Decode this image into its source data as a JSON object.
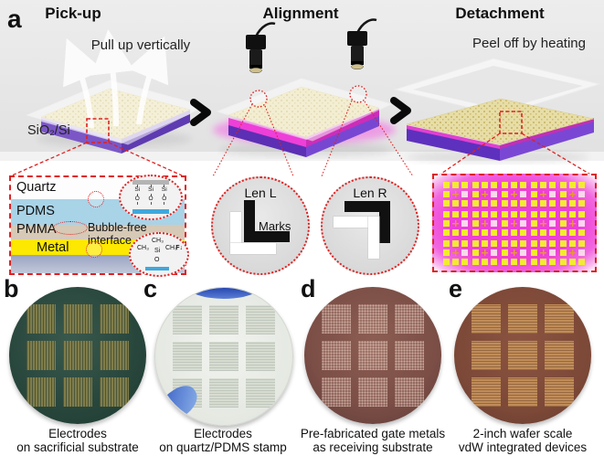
{
  "colors": {
    "accent_red": "#e02020",
    "magenta_layer": "#ee3fd8",
    "purple_substrate": "#6a3fc0",
    "pdms_blue": "#a9d3e7",
    "pmma_tan": "#d6c9b5",
    "metal_yellow": "#fce800",
    "pad_yellow": "#f3ec2e",
    "wafer_b": "#2c4b41",
    "wafer_c": "#eceee9",
    "wafer_d": "#7a5047",
    "wafer_e": "#7c4938"
  },
  "panel_a": {
    "label": "a",
    "steps": {
      "pickup": {
        "title": "Pick-up",
        "annotation": "Pull up vertically"
      },
      "alignment": {
        "title": "Alignment"
      },
      "detachment": {
        "title": "Detachment",
        "annotation": "Peel off by heating"
      }
    },
    "substrate_label": "SiO₂/Si"
  },
  "interface_inset": {
    "layers": {
      "quartz": "Quartz",
      "pdms": "PDMS",
      "pmma": "PMMA",
      "metal": "Metal"
    },
    "interface_label": "Bubble-free interface",
    "siloxane_bond": {
      "si_atoms": [
        "Si",
        "Si",
        "Si"
      ],
      "o_atoms": [
        "O",
        "O",
        "O"
      ]
    },
    "silane_group": {
      "ch3_top": "CH₃",
      "ch3_left": "CH₃",
      "ch3_right": "CH₃",
      "si": "Si",
      "o": "O",
      "force": "F↓"
    }
  },
  "lens_insets": {
    "left": {
      "title": "Len L",
      "marks_label": "Marks"
    },
    "right": {
      "title": "Len R"
    }
  },
  "device_array_inset": {
    "columns": 5,
    "rows": 3
  },
  "photos": [
    {
      "letter": "b",
      "caption_line1": "Electrodes",
      "caption_line2": "on sacrificial substrate",
      "grid_rows": 3,
      "grid_cols": 3
    },
    {
      "letter": "c",
      "caption_line1": "Electrodes",
      "caption_line2": "on quartz/PDMS stamp",
      "grid_rows": 3,
      "grid_cols": 3
    },
    {
      "letter": "d",
      "caption_line1": "Pre-fabricated gate metals",
      "caption_line2": "as receiving substrate",
      "grid_rows": 3,
      "grid_cols": 3
    },
    {
      "letter": "e",
      "caption_line1": "2-inch wafer scale",
      "caption_line2": "vdW integrated devices",
      "grid_rows": 3,
      "grid_cols": 3
    }
  ]
}
